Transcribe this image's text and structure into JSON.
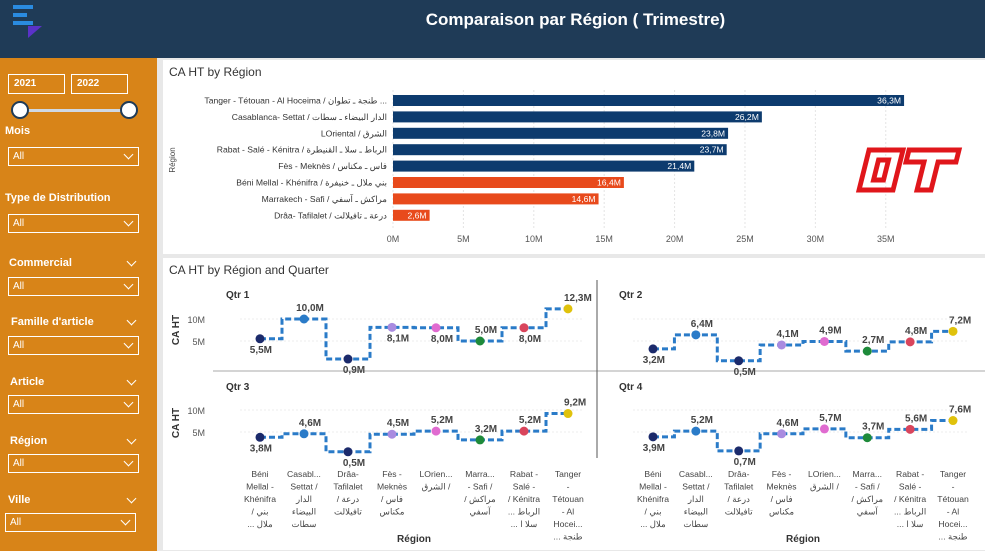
{
  "header": {
    "title": "Comparaison par Région ( Trimestre)",
    "logo_icon": "hamburger-menu-icon"
  },
  "colors": {
    "header_bg": "#1f3b57",
    "sidebar_bg": "#d88418",
    "bar_blue": "#0d3b6e",
    "bar_orange": "#e84a1c",
    "line_blue": "#2a7bc8",
    "brand_red": "#e0161b"
  },
  "sidebar": {
    "year_from": "2021",
    "year_to": "2022",
    "filters": [
      {
        "label": "Mois",
        "value": "All"
      },
      {
        "label": "Type de Distribution",
        "value": "All"
      },
      {
        "label": "Commercial",
        "value": "All"
      },
      {
        "label": "Famille d'article",
        "value": "All"
      },
      {
        "label": "Article",
        "value": "All"
      },
      {
        "label": "Région",
        "value": "All"
      },
      {
        "label": "Ville",
        "value": "All"
      }
    ]
  },
  "brand_logo": "OT",
  "chart_data": [
    {
      "type": "bar",
      "orientation": "horizontal",
      "title": "CA HT by Région",
      "ylabel": "Région",
      "xlabel": "",
      "categories": [
        "Tanger - Tétouan - Al Hoceima / طنجة ـ تطوان ـ الحسيمة",
        "Casablanca- Settat / الدار البيضاء ـ سطات",
        "LOriental / الشرق",
        "Rabat - Salé - Kénitra / الرباط ـ سلا ـ القنيطرة",
        "Fès - Meknès / فاس ـ مكناس",
        "Béni Mellal - Khénifra / بني ملال ـ خنيفرة",
        "Marrakech - Safi / مراكش ـ آسفي",
        "Drâa- Tafilalet / درعة ـ تافيلالت"
      ],
      "display_labels": [
        "Tanger - Tétouan - Al Hoceima / طنجة ـ تطوان ...",
        "Casablanca- Settat / الدار البيضاء ـ سطات",
        "LOriental / الشرق",
        "Rabat - Salé - Kénitra / الرباط ـ سلا ـ القنيطرة",
        "Fès - Meknès / فاس ـ مكناس",
        "Béni Mellal - Khénifra / بني ملال ـ خنيفرة",
        "Marrakech - Safi / مراكش ـ آسفي",
        "Drâa- Tafilalet / درعة ـ تافيلالت"
      ],
      "values": [
        36.3,
        26.2,
        23.8,
        23.7,
        21.4,
        16.4,
        14.6,
        2.6
      ],
      "value_labels": [
        "36,3M",
        "26,2M",
        "23,8M",
        "23,7M",
        "21,4M",
        "16,4M",
        "14,6M",
        "2,6M"
      ],
      "bar_colors": [
        "#0d3b6e",
        "#0d3b6e",
        "#0d3b6e",
        "#0d3b6e",
        "#0d3b6e",
        "#e84a1c",
        "#e84a1c",
        "#e84a1c"
      ],
      "xlim": [
        0,
        38
      ],
      "ticks": [
        0,
        5,
        10,
        15,
        20,
        25,
        30,
        35
      ],
      "tick_labels": [
        "0M",
        "5M",
        "10M",
        "15M",
        "20M",
        "25M",
        "30M",
        "35M"
      ],
      "grid": true
    },
    {
      "type": "line",
      "title": "CA HT by Région and Quarter",
      "ylabel": "CA HT",
      "xlabel": "Région",
      "y_ticks": [
        5,
        10
      ],
      "y_tick_labels": [
        "5M",
        "10M"
      ],
      "categories": [
        "Béni Mellal - Khénifra / بني ملال ـ خنيفرة",
        "Casablanca- Settat / الدار البيضاء ـ سطات",
        "Drâa- Tafilalet / درعة ـ تافيلالت",
        "Fès - Meknès / فاس ـ مكناس",
        "LOriental / الشرق",
        "Marrakech - Safi / مراكش ـ آسفي",
        "Rabat - Salé - Kénitra / الرباط ـ سلا ـ القنيطرة",
        "Tanger - Tétouan - Al Hoceima / طنجة ـ تطوان ـ الحسيمة"
      ],
      "x_tick_lines": [
        [
          "Béni",
          "Mellal -",
          "Khénifra",
          "/ بني",
          "... ملال"
        ],
        [
          "Casabl...",
          "Settat /",
          "الدار",
          "البيضاء",
          "سطات"
        ],
        [
          "Drâa-",
          "Tafilalet",
          "/ درعة",
          "تافيلالت"
        ],
        [
          "Fès -",
          "Meknès",
          "/ فاس",
          "مكناس"
        ],
        [
          "LOrien...",
          "الشرق /"
        ],
        [
          "Marra...",
          "- Safi /",
          "/ مراكش",
          "آسفي"
        ],
        [
          "Rabat -",
          "Salé -",
          "/ Kénitra",
          "... الرباط",
          "... سلا ا"
        ],
        [
          "Tanger",
          "-",
          "Tétouan",
          "- Al",
          "Hocei...",
          "... طنجة"
        ]
      ],
      "point_colors": [
        "#1b2a6b",
        "#2a7bc8",
        "#1b2a6b",
        "#a98be0",
        "#e06bd0",
        "#1e8a3a",
        "#d9455c",
        "#e0c20c"
      ],
      "panels": [
        {
          "label": "Qtr 1",
          "values": [
            5.5,
            10.0,
            0.9,
            8.1,
            8.0,
            5.0,
            8.0,
            12.3
          ],
          "value_labels": [
            "5,5M",
            "10,0M",
            "0,9M",
            "8,1M",
            "8,0M",
            "5,0M",
            "8,0M",
            "12,3M"
          ]
        },
        {
          "label": "Qtr 2",
          "values": [
            3.2,
            6.4,
            0.5,
            4.1,
            4.9,
            2.7,
            4.8,
            7.2
          ],
          "value_labels": [
            "3,2M",
            "6,4M",
            "0,5M",
            "4,1M",
            "4,9M",
            "2,7M",
            "4,8M",
            "7,2M"
          ]
        },
        {
          "label": "Qtr 3",
          "values": [
            3.8,
            4.6,
            0.5,
            4.5,
            5.2,
            3.2,
            5.2,
            9.2
          ],
          "value_labels": [
            "3,8M",
            "4,6M",
            "0,5M",
            "4,5M",
            "5,2M",
            "3,2M",
            "5,2M",
            "9,2M"
          ]
        },
        {
          "label": "Qtr 4",
          "values": [
            3.9,
            5.2,
            0.7,
            4.6,
            5.7,
            3.7,
            5.6,
            7.6
          ],
          "value_labels": [
            "3,9M",
            "5,2M",
            "0,7M",
            "4,6M",
            "5,7M",
            "3,7M",
            "5,6M",
            "7,6M"
          ]
        }
      ]
    }
  ]
}
